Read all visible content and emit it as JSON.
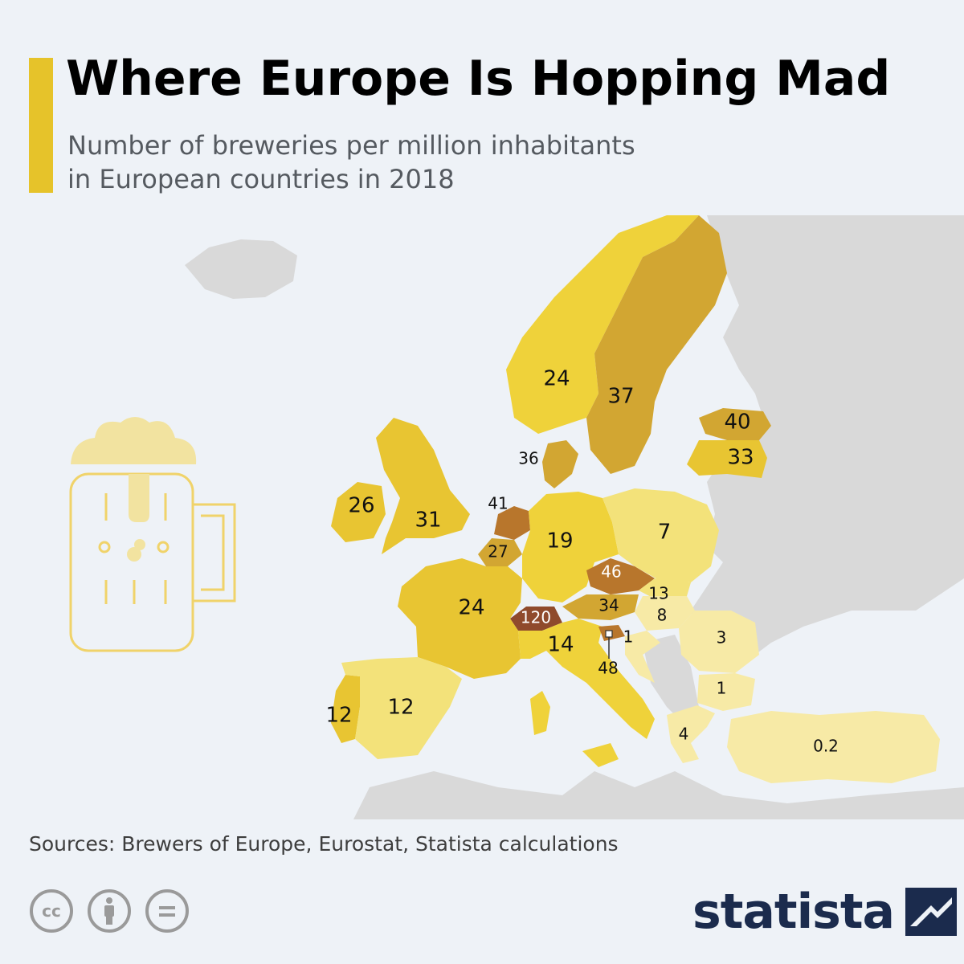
{
  "header": {
    "title": "Where Europe Is Hopping Mad",
    "subtitle_line1": "Number of breweries per million inhabitants",
    "subtitle_line2": "in European countries in 2018"
  },
  "map": {
    "legend_colors": {
      "lowest": "#f7eaa6",
      "low": "#f3e27a",
      "mid": "#efd23a",
      "high": "#e8c532",
      "higher": "#d2a632",
      "highest": "#b8762c",
      "top": "#8f4a2c",
      "background_land": "#d9d9d9",
      "sea": "#eef2f7"
    },
    "countries": [
      {
        "name": "Norway",
        "value": "24"
      },
      {
        "name": "Sweden",
        "value": "37"
      },
      {
        "name": "Estonia",
        "value": "40"
      },
      {
        "name": "Latvia",
        "value": "33"
      },
      {
        "name": "Denmark",
        "value": "36"
      },
      {
        "name": "Ireland",
        "value": "26"
      },
      {
        "name": "United Kingdom",
        "value": "31"
      },
      {
        "name": "Netherlands",
        "value": "41"
      },
      {
        "name": "Belgium",
        "value": "27"
      },
      {
        "name": "Germany",
        "value": "19"
      },
      {
        "name": "Poland",
        "value": "7"
      },
      {
        "name": "Czechia",
        "value": "46"
      },
      {
        "name": "Slovakia",
        "value": "13"
      },
      {
        "name": "Austria",
        "value": "34"
      },
      {
        "name": "Hungary",
        "value": "8"
      },
      {
        "name": "Switzerland",
        "value": "120"
      },
      {
        "name": "France",
        "value": "24"
      },
      {
        "name": "Italy",
        "value": "14"
      },
      {
        "name": "Slovenia",
        "value": "48"
      },
      {
        "name": "Croatia",
        "value": "1"
      },
      {
        "name": "Romania",
        "value": "3"
      },
      {
        "name": "Bulgaria",
        "value": "1"
      },
      {
        "name": "Greece",
        "value": "4"
      },
      {
        "name": "Turkey",
        "value": "0.2"
      },
      {
        "name": "Portugal",
        "value": "12"
      },
      {
        "name": "Spain",
        "value": "12"
      }
    ]
  },
  "footer": {
    "sources": "Sources: Brewers of Europe, Eurostat, Statista calculations",
    "brand": "statista"
  },
  "icons": [
    "beer-mug-icon",
    "cc-icon",
    "attribution-icon",
    "no-derivatives-icon",
    "statista-logo-icon"
  ]
}
